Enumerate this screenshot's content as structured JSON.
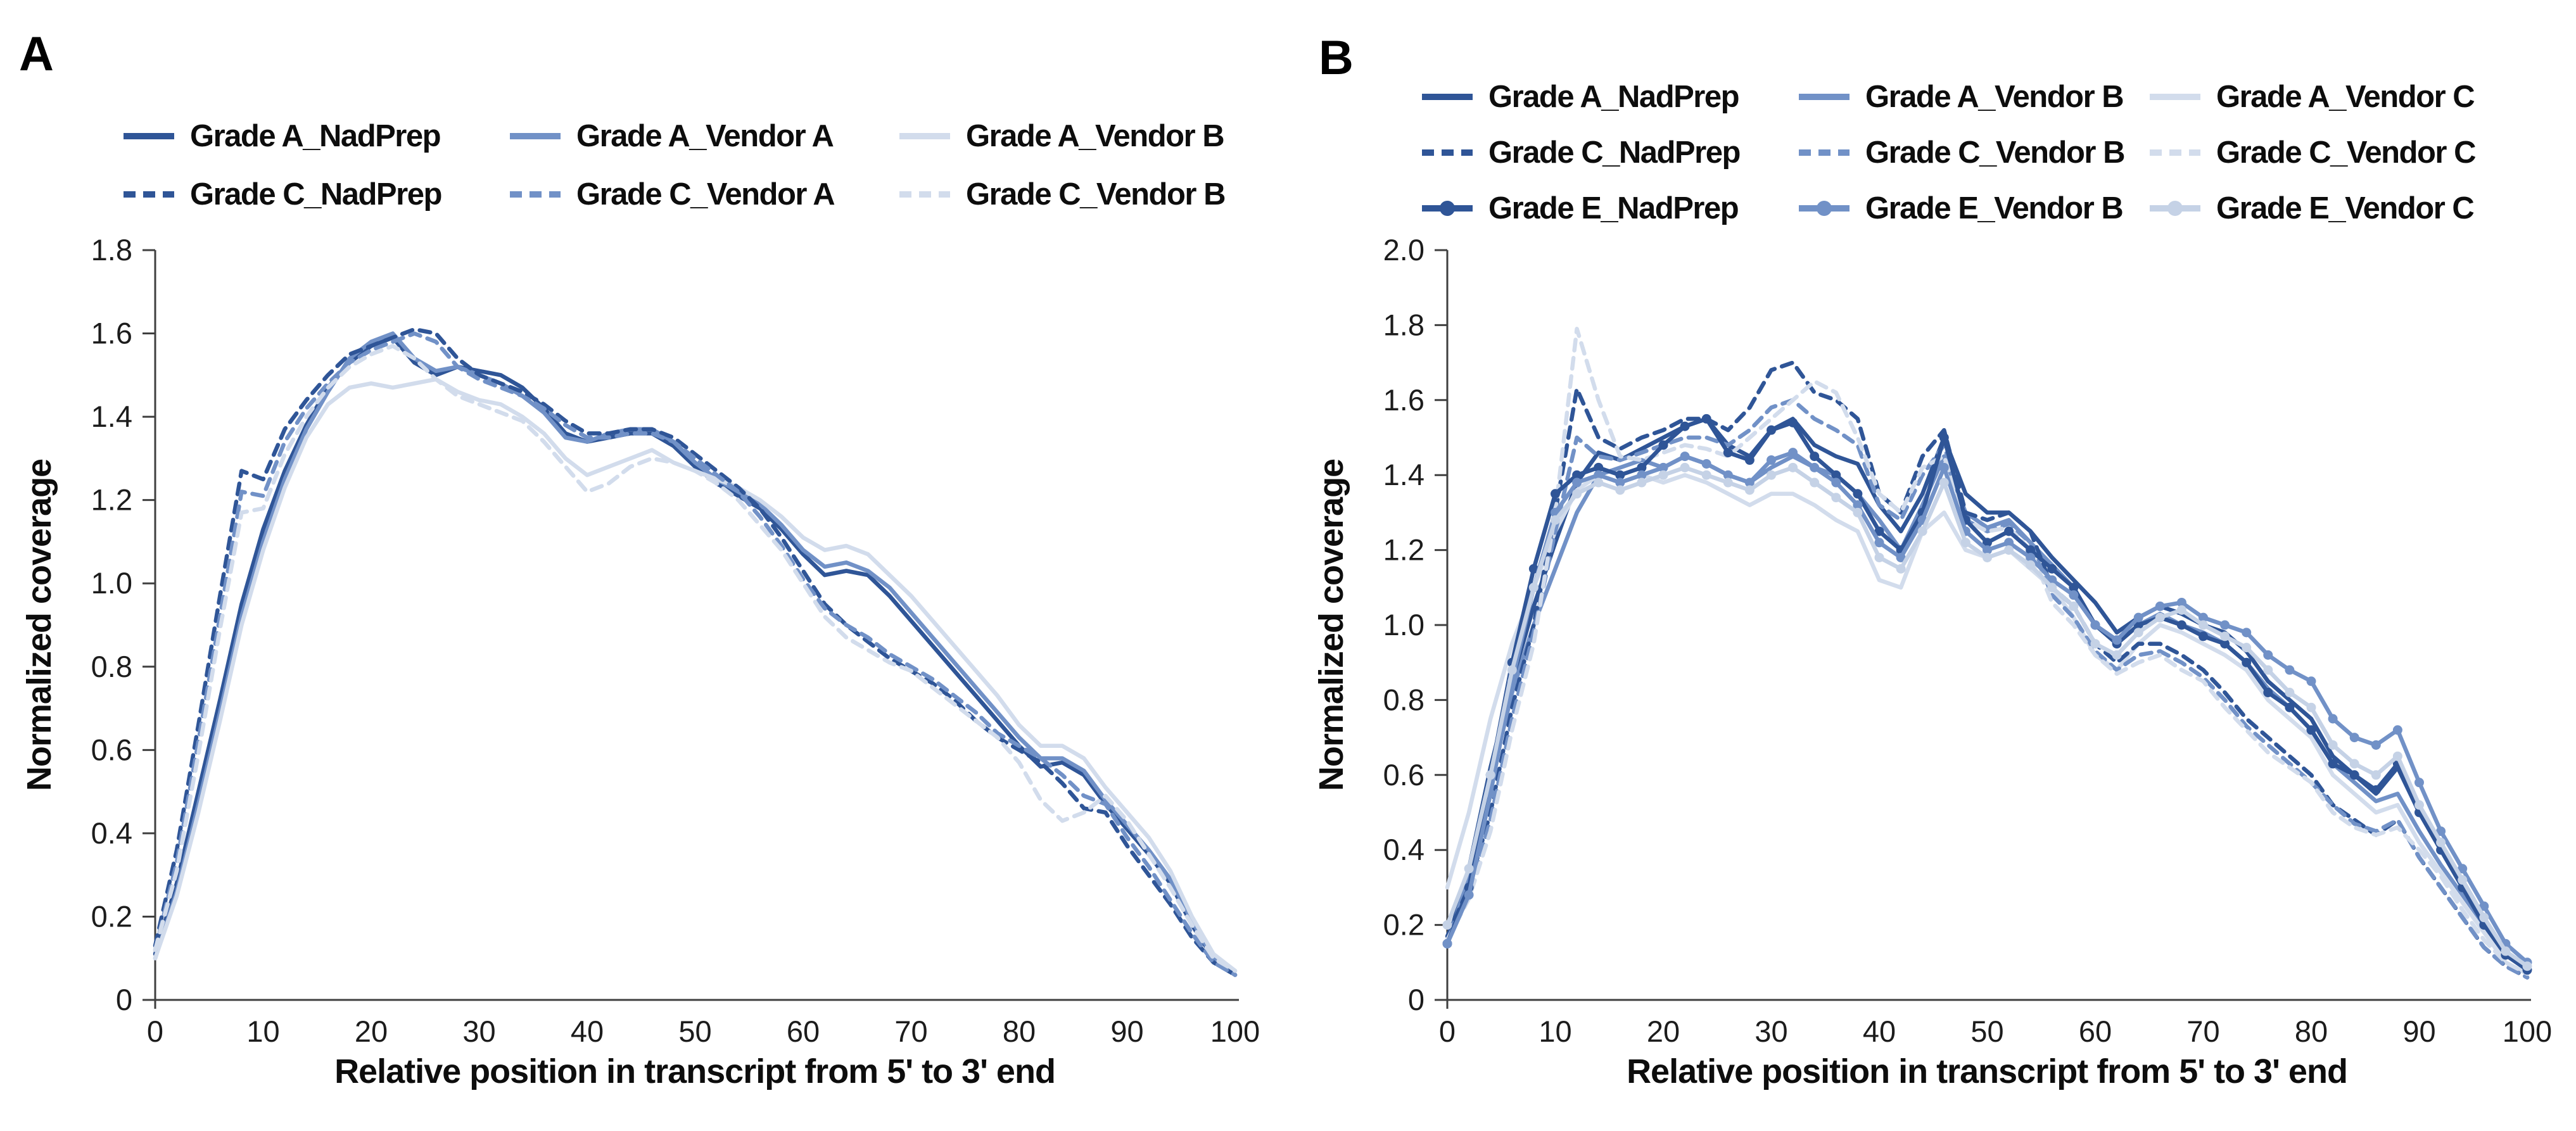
{
  "figure": {
    "colors": {
      "dark": "#2F5597",
      "medium": "#7191C7",
      "light": "#D2DCEC",
      "marker_light": "#C5D2E6",
      "axis": "#3f3f3f",
      "text": "#0d0d0d"
    },
    "panels": [
      {
        "letter": "A",
        "y_title": "Normalized coverage",
        "x_title": "Relative position in transcript from 5' to 3' end"
      },
      {
        "letter": "B",
        "y_title": "Normalized coverage",
        "x_title": "Relative position in transcript from 5' to 3' end"
      }
    ]
  },
  "chart_data": [
    {
      "panel": "A",
      "type": "line",
      "title": "",
      "xlabel": "Relative position in transcript from 5' to 3' end",
      "ylabel": "Normalized coverage",
      "xlim": [
        0,
        100
      ],
      "ylim": [
        0,
        1.8
      ],
      "x_ticks": [
        0,
        10,
        20,
        30,
        40,
        50,
        60,
        70,
        80,
        90,
        100
      ],
      "y_tick_labels": [
        "0",
        "0.2",
        "0.4",
        "0.6",
        "0.8",
        "1.0",
        "1.2",
        "1.4",
        "1.6",
        "1.8"
      ],
      "x_start": 0,
      "x_step": 2,
      "grid": false,
      "legend_position": "top",
      "legend_columns": 3,
      "series": [
        {
          "name": "Grade A_NadPrep",
          "line": "solid",
          "marker": false,
          "color": "dark",
          "values": [
            0.11,
            0.28,
            0.5,
            0.72,
            0.95,
            1.13,
            1.27,
            1.38,
            1.47,
            1.53,
            1.57,
            1.59,
            1.53,
            1.5,
            1.52,
            1.51,
            1.5,
            1.47,
            1.42,
            1.36,
            1.34,
            1.35,
            1.36,
            1.36,
            1.33,
            1.28,
            1.24,
            1.21,
            1.18,
            1.13,
            1.07,
            1.02,
            1.03,
            1.02,
            0.97,
            0.91,
            0.85,
            0.79,
            0.73,
            0.67,
            0.61,
            0.56,
            0.57,
            0.54,
            0.47,
            0.41,
            0.35,
            0.28,
            0.18,
            0.1,
            0.06
          ]
        },
        {
          "name": "Grade A_Vendor A",
          "line": "solid",
          "marker": false,
          "color": "medium",
          "values": [
            0.1,
            0.26,
            0.47,
            0.69,
            0.92,
            1.1,
            1.25,
            1.37,
            1.46,
            1.54,
            1.58,
            1.6,
            1.54,
            1.51,
            1.52,
            1.5,
            1.48,
            1.45,
            1.41,
            1.35,
            1.34,
            1.36,
            1.37,
            1.37,
            1.34,
            1.29,
            1.25,
            1.22,
            1.19,
            1.14,
            1.08,
            1.04,
            1.05,
            1.03,
            0.99,
            0.93,
            0.87,
            0.81,
            0.75,
            0.69,
            0.63,
            0.58,
            0.58,
            0.55,
            0.48,
            0.42,
            0.36,
            0.29,
            0.19,
            0.1,
            0.06
          ]
        },
        {
          "name": "Grade A_Vendor B",
          "line": "solid",
          "marker": false,
          "color": "light",
          "values": [
            0.1,
            0.25,
            0.45,
            0.67,
            0.9,
            1.08,
            1.23,
            1.35,
            1.43,
            1.47,
            1.48,
            1.47,
            1.48,
            1.49,
            1.46,
            1.44,
            1.43,
            1.4,
            1.36,
            1.3,
            1.26,
            1.28,
            1.3,
            1.32,
            1.29,
            1.27,
            1.25,
            1.23,
            1.2,
            1.16,
            1.11,
            1.08,
            1.09,
            1.07,
            1.02,
            0.97,
            0.91,
            0.85,
            0.79,
            0.73,
            0.66,
            0.61,
            0.61,
            0.58,
            0.51,
            0.45,
            0.39,
            0.31,
            0.2,
            0.11,
            0.07
          ]
        },
        {
          "name": "Grade C_NadPrep",
          "line": "dashed",
          "marker": false,
          "color": "dark",
          "values": [
            0.13,
            0.36,
            0.66,
            0.97,
            1.27,
            1.25,
            1.37,
            1.44,
            1.5,
            1.55,
            1.57,
            1.59,
            1.61,
            1.6,
            1.54,
            1.5,
            1.48,
            1.46,
            1.43,
            1.39,
            1.36,
            1.36,
            1.37,
            1.37,
            1.35,
            1.31,
            1.27,
            1.23,
            1.18,
            1.11,
            1.03,
            0.95,
            0.9,
            0.86,
            0.82,
            0.79,
            0.76,
            0.72,
            0.67,
            0.63,
            0.6,
            0.57,
            0.52,
            0.46,
            0.45,
            0.37,
            0.3,
            0.23,
            0.15,
            0.09,
            0.06
          ]
        },
        {
          "name": "Grade C_Vendor A",
          "line": "dashed",
          "marker": false,
          "color": "medium",
          "values": [
            0.12,
            0.33,
            0.62,
            0.92,
            1.22,
            1.21,
            1.34,
            1.42,
            1.48,
            1.53,
            1.56,
            1.58,
            1.6,
            1.58,
            1.52,
            1.49,
            1.47,
            1.45,
            1.42,
            1.38,
            1.35,
            1.35,
            1.36,
            1.36,
            1.34,
            1.3,
            1.26,
            1.22,
            1.16,
            1.09,
            1.01,
            0.94,
            0.9,
            0.87,
            0.83,
            0.8,
            0.77,
            0.73,
            0.69,
            0.64,
            0.61,
            0.58,
            0.54,
            0.49,
            0.47,
            0.39,
            0.32,
            0.24,
            0.16,
            0.09,
            0.06
          ]
        },
        {
          "name": "Grade C_Vendor B",
          "line": "dashed",
          "marker": false,
          "color": "light",
          "values": [
            0.12,
            0.31,
            0.59,
            0.89,
            1.17,
            1.18,
            1.31,
            1.4,
            1.47,
            1.52,
            1.55,
            1.57,
            1.54,
            1.49,
            1.45,
            1.43,
            1.41,
            1.39,
            1.34,
            1.28,
            1.22,
            1.24,
            1.28,
            1.3,
            1.29,
            1.27,
            1.24,
            1.2,
            1.14,
            1.08,
            1.0,
            0.92,
            0.87,
            0.84,
            0.81,
            0.79,
            0.75,
            0.71,
            0.67,
            0.63,
            0.57,
            0.48,
            0.43,
            0.45,
            0.49,
            0.43,
            0.35,
            0.27,
            0.18,
            0.1,
            0.07
          ]
        }
      ]
    },
    {
      "panel": "B",
      "type": "line",
      "title": "",
      "xlabel": "Relative position in transcript from 5' to 3' end",
      "ylabel": "Normalized coverage",
      "xlim": [
        0,
        100
      ],
      "ylim": [
        0,
        2.0
      ],
      "x_ticks": [
        0,
        10,
        20,
        30,
        40,
        50,
        60,
        70,
        80,
        90,
        100
      ],
      "y_tick_labels": [
        "0",
        "0.2",
        "0.4",
        "0.6",
        "0.8",
        "1.0",
        "1.2",
        "1.4",
        "1.6",
        "1.8",
        "2.0"
      ],
      "x_start": 0,
      "x_step": 2,
      "grid": false,
      "legend_position": "top",
      "legend_columns": 3,
      "series": [
        {
          "name": "Grade A_NadPrep",
          "line": "solid",
          "marker": false,
          "color": "dark",
          "values": [
            0.15,
            0.35,
            0.62,
            0.85,
            1.05,
            1.22,
            1.38,
            1.46,
            1.44,
            1.47,
            1.5,
            1.53,
            1.55,
            1.48,
            1.45,
            1.52,
            1.55,
            1.48,
            1.45,
            1.43,
            1.32,
            1.25,
            1.35,
            1.5,
            1.35,
            1.3,
            1.3,
            1.25,
            1.18,
            1.12,
            1.06,
            0.98,
            1.02,
            1.05,
            1.03,
            1.0,
            0.98,
            0.93,
            0.85,
            0.8,
            0.75,
            0.65,
            0.6,
            0.55,
            0.62,
            0.5,
            0.4,
            0.32,
            0.22,
            0.12,
            0.08
          ]
        },
        {
          "name": "Grade A_Vendor B",
          "line": "solid",
          "marker": false,
          "color": "medium",
          "values": [
            0.15,
            0.33,
            0.58,
            0.82,
            1.0,
            1.15,
            1.3,
            1.4,
            1.42,
            1.44,
            1.42,
            1.45,
            1.43,
            1.4,
            1.38,
            1.42,
            1.45,
            1.42,
            1.4,
            1.35,
            1.28,
            1.2,
            1.32,
            1.45,
            1.3,
            1.26,
            1.28,
            1.22,
            1.16,
            1.1,
            1.0,
            0.95,
            1.0,
            1.03,
            1.0,
            0.98,
            0.95,
            0.9,
            0.83,
            0.78,
            0.72,
            0.63,
            0.58,
            0.53,
            0.55,
            0.45,
            0.36,
            0.28,
            0.2,
            0.12,
            0.09
          ]
        },
        {
          "name": "Grade A_Vendor C",
          "line": "solid",
          "marker": false,
          "color": "light",
          "values": [
            0.3,
            0.5,
            0.75,
            0.95,
            1.1,
            1.25,
            1.36,
            1.4,
            1.38,
            1.4,
            1.38,
            1.4,
            1.38,
            1.35,
            1.32,
            1.35,
            1.35,
            1.32,
            1.28,
            1.25,
            1.12,
            1.1,
            1.25,
            1.3,
            1.2,
            1.18,
            1.2,
            1.15,
            1.1,
            1.02,
            0.92,
            0.88,
            0.95,
            1.0,
            0.98,
            0.95,
            0.92,
            0.88,
            0.8,
            0.75,
            0.7,
            0.6,
            0.55,
            0.5,
            0.52,
            0.42,
            0.34,
            0.26,
            0.18,
            0.1,
            0.07
          ]
        },
        {
          "name": "Grade C_NadPrep",
          "line": "dashed",
          "marker": false,
          "color": "dark",
          "values": [
            0.17,
            0.3,
            0.5,
            0.78,
            1.0,
            1.3,
            1.63,
            1.5,
            1.47,
            1.5,
            1.52,
            1.55,
            1.55,
            1.52,
            1.58,
            1.68,
            1.7,
            1.62,
            1.6,
            1.55,
            1.35,
            1.3,
            1.45,
            1.52,
            1.3,
            1.28,
            1.3,
            1.25,
            1.1,
            1.05,
            0.95,
            0.9,
            0.95,
            0.95,
            0.92,
            0.88,
            0.82,
            0.75,
            0.7,
            0.65,
            0.6,
            0.52,
            0.48,
            0.44,
            0.48,
            0.38,
            0.3,
            0.22,
            0.14,
            0.09,
            0.06
          ]
        },
        {
          "name": "Grade C_Vendor B",
          "line": "dashed",
          "marker": false,
          "color": "medium",
          "values": [
            0.16,
            0.28,
            0.48,
            0.75,
            0.98,
            1.25,
            1.5,
            1.45,
            1.44,
            1.46,
            1.48,
            1.5,
            1.5,
            1.48,
            1.52,
            1.58,
            1.6,
            1.55,
            1.52,
            1.48,
            1.32,
            1.28,
            1.4,
            1.48,
            1.28,
            1.25,
            1.27,
            1.22,
            1.08,
            1.02,
            0.93,
            0.88,
            0.92,
            0.93,
            0.9,
            0.86,
            0.8,
            0.73,
            0.68,
            0.63,
            0.58,
            0.52,
            0.47,
            0.45,
            0.48,
            0.38,
            0.3,
            0.22,
            0.14,
            0.09,
            0.06
          ]
        },
        {
          "name": "Grade C_Vendor C",
          "line": "dashed",
          "marker": false,
          "color": "light",
          "values": [
            0.16,
            0.27,
            0.45,
            0.72,
            0.95,
            1.3,
            1.79,
            1.6,
            1.45,
            1.44,
            1.46,
            1.48,
            1.47,
            1.45,
            1.5,
            1.55,
            1.6,
            1.65,
            1.62,
            1.5,
            1.35,
            1.3,
            1.42,
            1.45,
            1.28,
            1.25,
            1.26,
            1.2,
            1.06,
            1.0,
            0.92,
            0.87,
            0.9,
            0.92,
            0.88,
            0.85,
            0.78,
            0.72,
            0.66,
            0.62,
            0.58,
            0.5,
            0.46,
            0.44,
            0.46,
            0.4,
            0.33,
            0.24,
            0.16,
            0.1,
            0.07
          ]
        },
        {
          "name": "Grade E_NadPrep",
          "line": "solid",
          "marker": true,
          "color": "dark",
          "values": [
            0.15,
            0.3,
            0.6,
            0.9,
            1.15,
            1.35,
            1.4,
            1.42,
            1.4,
            1.42,
            1.48,
            1.53,
            1.55,
            1.46,
            1.44,
            1.52,
            1.54,
            1.45,
            1.4,
            1.35,
            1.25,
            1.2,
            1.3,
            1.5,
            1.28,
            1.22,
            1.25,
            1.2,
            1.15,
            1.1,
            1.0,
            0.95,
            1.0,
            1.02,
            1.0,
            0.97,
            0.95,
            0.9,
            0.82,
            0.78,
            0.72,
            0.63,
            0.6,
            0.56,
            0.63,
            0.5,
            0.4,
            0.3,
            0.2,
            0.12,
            0.08
          ]
        },
        {
          "name": "Grade E_Vendor B",
          "line": "solid",
          "marker": true,
          "color": "medium",
          "values": [
            0.15,
            0.28,
            0.55,
            0.85,
            1.1,
            1.3,
            1.38,
            1.4,
            1.38,
            1.4,
            1.42,
            1.45,
            1.43,
            1.4,
            1.38,
            1.44,
            1.46,
            1.42,
            1.38,
            1.32,
            1.22,
            1.18,
            1.28,
            1.42,
            1.25,
            1.2,
            1.22,
            1.18,
            1.12,
            1.08,
            1.0,
            0.96,
            1.02,
            1.05,
            1.06,
            1.02,
            1.0,
            0.98,
            0.92,
            0.88,
            0.85,
            0.75,
            0.7,
            0.68,
            0.72,
            0.58,
            0.45,
            0.35,
            0.25,
            0.15,
            0.1
          ]
        },
        {
          "name": "Grade E_Vendor C",
          "line": "solid",
          "marker": true,
          "color": "marker_light",
          "values": [
            0.2,
            0.35,
            0.6,
            0.88,
            1.1,
            1.28,
            1.35,
            1.38,
            1.36,
            1.38,
            1.4,
            1.42,
            1.4,
            1.38,
            1.36,
            1.4,
            1.42,
            1.38,
            1.34,
            1.3,
            1.18,
            1.15,
            1.25,
            1.38,
            1.22,
            1.18,
            1.2,
            1.16,
            1.1,
            1.05,
            0.95,
            0.92,
            0.98,
            1.02,
            1.04,
            1.0,
            0.97,
            0.94,
            0.88,
            0.82,
            0.78,
            0.68,
            0.63,
            0.6,
            0.65,
            0.52,
            0.42,
            0.32,
            0.22,
            0.13,
            0.09
          ]
        }
      ]
    }
  ]
}
